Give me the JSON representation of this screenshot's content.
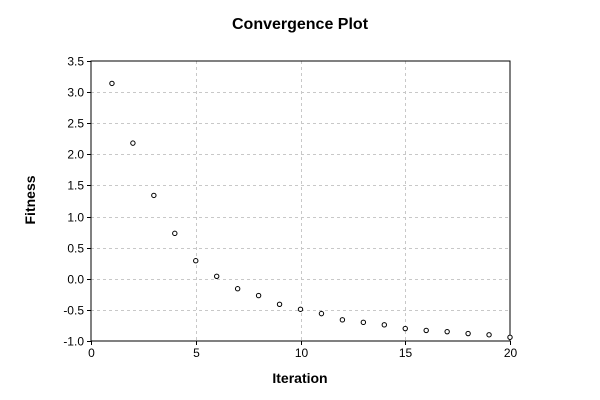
{
  "chart_data": {
    "type": "scatter",
    "title": "Convergence Plot",
    "xlabel": "Iteration",
    "ylabel": "Fitness",
    "xlim": [
      0,
      20
    ],
    "ylim": [
      -1.0,
      3.5
    ],
    "xticks": [
      0,
      5,
      10,
      15,
      20
    ],
    "yticks": [
      -1.0,
      -0.5,
      0.0,
      0.5,
      1.0,
      1.5,
      2.0,
      2.5,
      3.0,
      3.5
    ],
    "ytick_labels": [
      "-1.0",
      "-0.5",
      "0.0",
      "0.5",
      "1.0",
      "1.5",
      "2.0",
      "2.5",
      "3.0",
      "3.5"
    ],
    "grid": true,
    "legend": "none",
    "marker": "open-circle",
    "marker_color": "#000000",
    "grid_color": "#c8c8c8",
    "x": [
      1,
      2,
      3,
      4,
      5,
      6,
      7,
      8,
      9,
      10,
      11,
      12,
      13,
      14,
      15,
      16,
      17,
      18,
      19,
      20
    ],
    "y": [
      3.14,
      2.18,
      1.34,
      0.73,
      0.29,
      0.04,
      -0.16,
      -0.27,
      -0.41,
      -0.49,
      -0.56,
      -0.66,
      -0.7,
      -0.74,
      -0.8,
      -0.83,
      -0.85,
      -0.88,
      -0.9,
      -0.94
    ]
  }
}
